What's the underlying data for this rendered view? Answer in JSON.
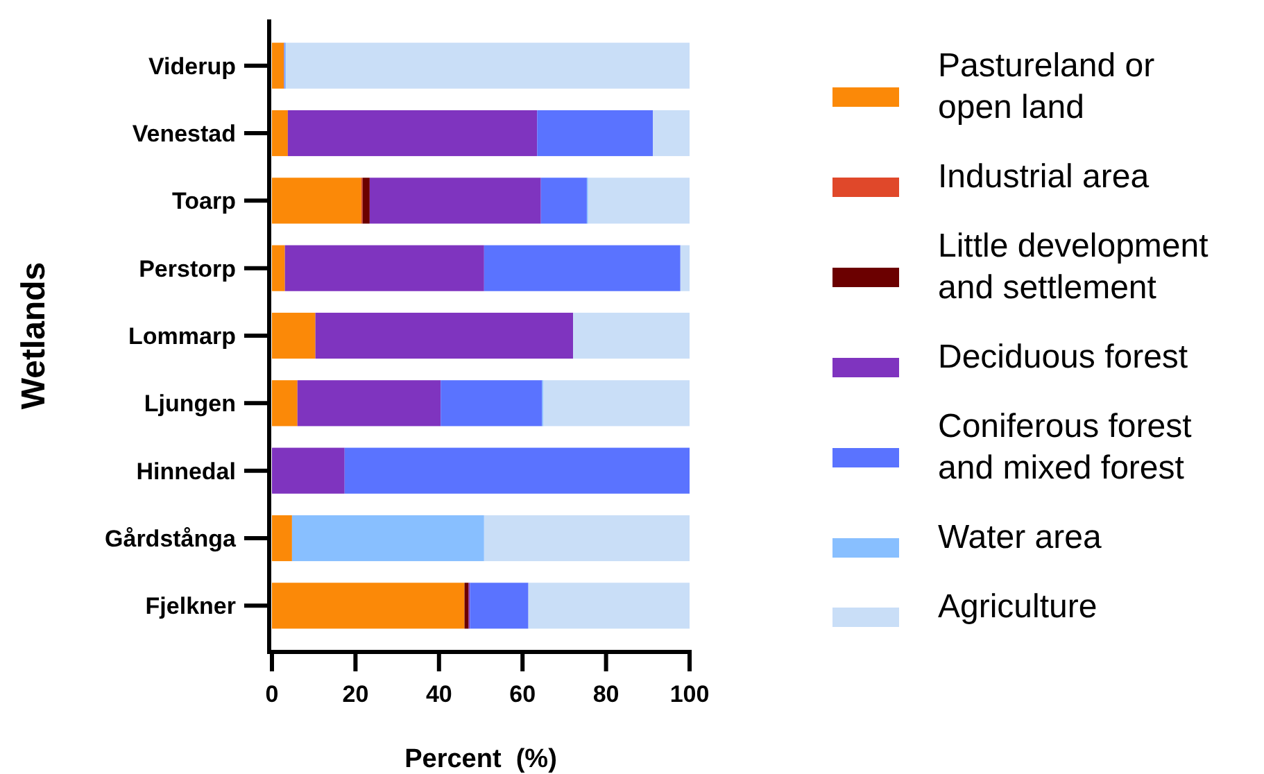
{
  "chart_data": {
    "type": "bar",
    "orientation": "horizontal",
    "stacked": true,
    "xlabel": "Percent  (%)",
    "ylabel": "Wetlands",
    "categories": [
      "Viderup",
      "Venestad",
      "Toarp",
      "Perstorp",
      "Lommarp",
      "Ljungen",
      "Hinnedal",
      "Gårdstånga",
      "Fjelkner"
    ],
    "series": [
      {
        "name": "Pastureland or open land",
        "color": "#fb8908",
        "values": [
          2.9,
          3.8,
          21.4,
          3.1,
          10.4,
          6.1,
          0,
          4.8,
          46.1
        ]
      },
      {
        "name": "Industrial area",
        "color": "#e0482a",
        "values": [
          0,
          0,
          0.3,
          0,
          0,
          0,
          0,
          0,
          0
        ]
      },
      {
        "name": "Little development and settlement",
        "color": "#6b0000",
        "values": [
          0,
          0,
          1.7,
          0,
          0,
          0,
          0,
          0,
          1.0
        ]
      },
      {
        "name": "Deciduous forest",
        "color": "#7f34bf",
        "values": [
          0,
          59.7,
          41.0,
          47.7,
          61.7,
          34.3,
          17.4,
          0,
          0.3
        ]
      },
      {
        "name": "Coniferous forest and mixed forest",
        "color": "#5a73ff",
        "values": [
          0.2,
          27.7,
          11.0,
          47.0,
          0,
          24.3,
          82.6,
          0,
          14.0
        ]
      },
      {
        "name": "Water area",
        "color": "#88bfff",
        "values": [
          0.3,
          0,
          0.3,
          0,
          0,
          0.3,
          0,
          46.0,
          0
        ]
      },
      {
        "name": "Agriculture",
        "color": "#c9def7",
        "values": [
          96.6,
          8.8,
          24.3,
          2.2,
          27.9,
          35.0,
          0,
          49.2,
          38.6
        ]
      }
    ],
    "xlim": [
      0,
      100
    ],
    "xticks": [
      0,
      20,
      40,
      60,
      80,
      100
    ],
    "grid": false,
    "legend": "right"
  }
}
